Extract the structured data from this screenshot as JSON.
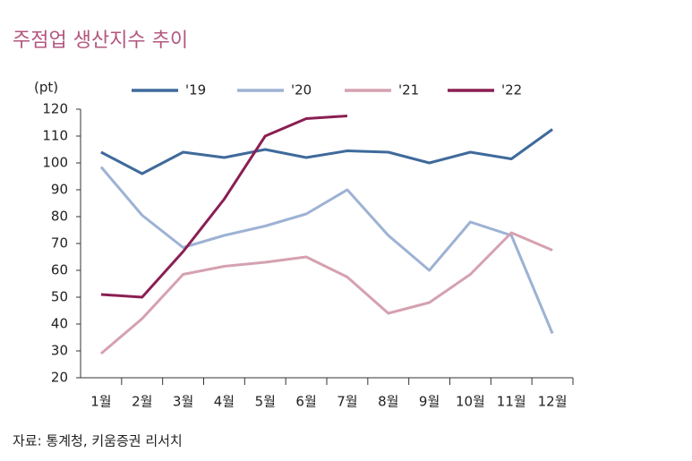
{
  "chart_data": {
    "type": "line",
    "title": "주점업 생산지수 추이",
    "y_unit": "(pt)",
    "source": "자료: 통계청, 키움증권 리서치",
    "categories": [
      "1월",
      "2월",
      "3월",
      "4월",
      "5월",
      "6월",
      "7월",
      "8월",
      "9월",
      "10월",
      "11월",
      "12월"
    ],
    "series": [
      {
        "name": "'19",
        "color": "#3f6a9b",
        "values": [
          104,
          96,
          104,
          102,
          105,
          102,
          104.5,
          104,
          100,
          104,
          101.5,
          112.5
        ]
      },
      {
        "name": "'20",
        "color": "#9db2d4",
        "values": [
          98.5,
          80.5,
          68.5,
          73,
          76.5,
          81,
          90,
          73,
          60,
          78,
          73,
          36.5
        ]
      },
      {
        "name": "'21",
        "color": "#d5a1b0",
        "values": [
          29,
          42,
          58.5,
          61.5,
          63,
          65,
          57.5,
          44,
          48,
          58.5,
          74,
          67.5
        ]
      },
      {
        "name": "'22",
        "color": "#8a1f52",
        "values": [
          51,
          50,
          67,
          86.5,
          110,
          116.5,
          117.5,
          null,
          null,
          null,
          null,
          null
        ]
      }
    ],
    "ylim": [
      20,
      120
    ],
    "yticks": [
      20,
      30,
      40,
      50,
      60,
      70,
      80,
      90,
      100,
      110,
      120
    ],
    "legend": "top"
  }
}
